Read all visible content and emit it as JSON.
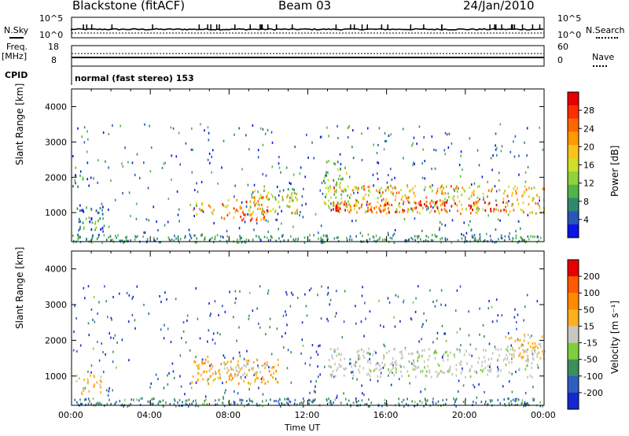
{
  "header": {
    "title": "Blackstone (fitACF)",
    "beam": "Beam 03",
    "date": "24/Jan/2010"
  },
  "status": {
    "left_top_label": "N.Sky",
    "left_freq_label": "Freq.",
    "left_freq_unit": "[MHz]",
    "left_cpid_label": "CPID",
    "right_top_label": "N.Search",
    "right_nave_label": "Nave",
    "nsky_ticks": [
      "10^5",
      "10^0"
    ],
    "freq_ticks": [
      "18",
      "8"
    ],
    "right_ticks_top": [
      "10^5",
      "10^0"
    ],
    "right_ticks_nave": [
      "60",
      "0"
    ],
    "cpid_text": "normal (fast stereo) 153"
  },
  "chart_data": [
    {
      "type": "heatmap",
      "name": "power",
      "xlabel": "",
      "ylabel": "Slant Range [km]",
      "x_range_hours": [
        0,
        24
      ],
      "ylim": [
        180,
        4500
      ],
      "yticks": [
        1000,
        2000,
        3000,
        4000
      ],
      "colorbar": {
        "label": "Power [dB]",
        "ticks": [
          "28",
          "24",
          "20",
          "16",
          "12",
          "8",
          "4"
        ],
        "colors": [
          "#0a14e6",
          "#2856b8",
          "#2e8a6e",
          "#52b34a",
          "#8ed13a",
          "#cfe028",
          "#ffc21a",
          "#ff9a00",
          "#ff6600",
          "#ff2d00",
          "#e60000"
        ]
      },
      "regions": [
        {
          "t": [
            0.1,
            0.6
          ],
          "r": [
            1700,
            2100
          ],
          "level": 0.25
        },
        {
          "t": [
            0.2,
            1.6
          ],
          "r": [
            500,
            1200
          ],
          "level": 0.2
        },
        {
          "t": [
            6.0,
            7.2
          ],
          "r": [
            900,
            1300
          ],
          "level": 0.55
        },
        {
          "t": [
            7.4,
            10.0
          ],
          "r": [
            800,
            1500
          ],
          "level": 0.7
        },
        {
          "t": [
            9.0,
            11.5
          ],
          "r": [
            1000,
            1700
          ],
          "level": 0.45
        },
        {
          "t": [
            12.8,
            14.0
          ],
          "r": [
            1200,
            2500
          ],
          "level": 0.4
        },
        {
          "t": [
            13.0,
            24.0
          ],
          "r": [
            1000,
            1800
          ],
          "level": 0.6
        },
        {
          "t": [
            13.2,
            22.0
          ],
          "r": [
            1050,
            1350
          ],
          "level": 0.9
        }
      ]
    },
    {
      "type": "heatmap",
      "name": "velocity",
      "xlabel": "Time UT",
      "ylabel": "Slant Range [km]",
      "x_range_hours": [
        0,
        24
      ],
      "xticks": [
        "00:00",
        "04:00",
        "08:00",
        "12:00",
        "16:00",
        "20:00",
        "00:00"
      ],
      "ylim": [
        180,
        4500
      ],
      "yticks": [
        1000,
        2000,
        3000,
        4000
      ],
      "colorbar": {
        "label": "Velocity [m s⁻¹]",
        "ticks": [
          "200",
          "100",
          "50",
          "15",
          "-15",
          "-50",
          "-100",
          "-200"
        ],
        "colors": [
          "#1428d2",
          "#2d5fbe",
          "#3a8f5a",
          "#7fcf3a",
          "#c8c8c0",
          "#ffb020",
          "#ff8a00",
          "#ff5a00",
          "#e60000"
        ]
      },
      "regions": [
        {
          "t": [
            0.2,
            1.5
          ],
          "r": [
            500,
            1100
          ],
          "class": "slow-away"
        },
        {
          "t": [
            6.0,
            10.5
          ],
          "r": [
            800,
            1500
          ],
          "class": "away"
        },
        {
          "t": [
            7.5,
            10.0
          ],
          "r": [
            1000,
            1400
          ],
          "class": "ground"
        },
        {
          "t": [
            13.0,
            23.5
          ],
          "r": [
            1000,
            1800
          ],
          "class": "ground"
        },
        {
          "t": [
            22.0,
            24.0
          ],
          "r": [
            1500,
            2200
          ],
          "class": "slow-away"
        }
      ]
    }
  ]
}
